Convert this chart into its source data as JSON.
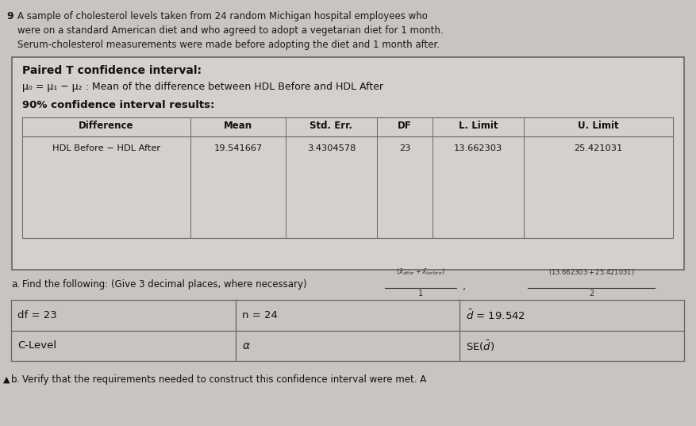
{
  "background_color": "#c8c4bf",
  "header_num": "9",
  "header_line1": "A sample of cholesterol levels taken from 24 random Michigan hospital employees who",
  "header_line2": "were on a standard American diet and who agreed to adopt a vegetarian diet for 1 month.",
  "header_line3": "Serum-cholesterol measurements were made before adopting the diet and 1 month after.",
  "box_bg": "#d8d4cf",
  "paired_t_title": "Paired T confidence interval:",
  "mu_line": "μ₀ = μ₁ − μ₂ : Mean of the difference between HDL Before and HDL After",
  "ci_results_title": "90% confidence interval results:",
  "table_headers": [
    "Difference",
    "Mean",
    "Std. Err.",
    "DF",
    "L. Limit",
    "U. Limit"
  ],
  "table_row": [
    "HDL Before − HDL After",
    "19.541667",
    "3.4304578",
    "23",
    "13.662303",
    "25.421031"
  ],
  "find_label": "a.",
  "find_text": "Find the following: (Give 3 decimal places, where necessary)",
  "grid_row1_c1": "df = 23",
  "grid_row1_c2": "n = 24",
  "grid_row1_c3_pre": "d̅ = 19.542",
  "grid_row2_c1": "C-Level",
  "grid_row2_c2": "α",
  "grid_row2_c3": "SE(d̅)",
  "verify_label": "b.",
  "verify_text": "Verify that the requirements needed to construct this confidence interval were met. A"
}
